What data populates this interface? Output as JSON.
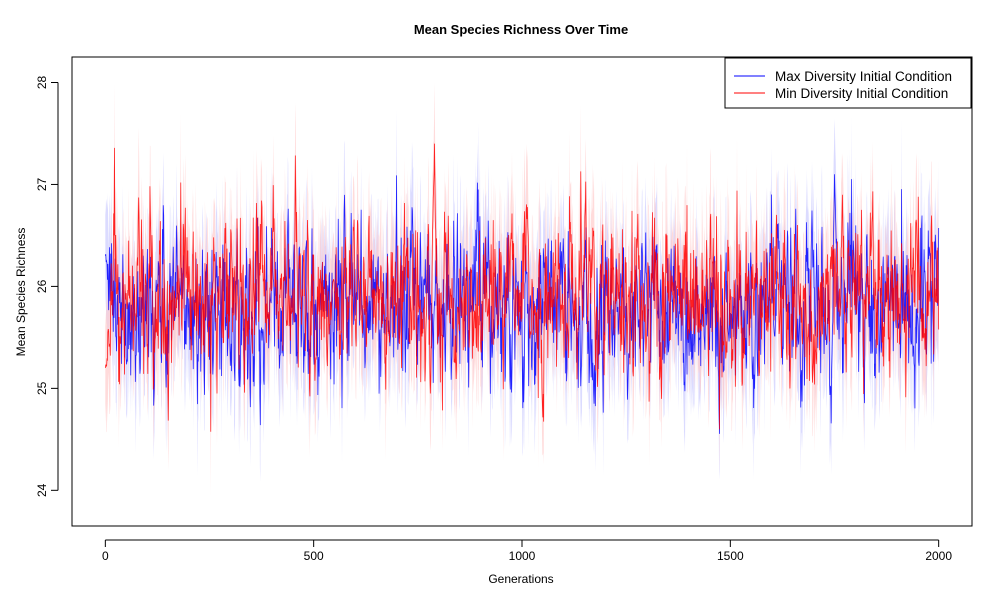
{
  "chart_data": {
    "type": "line",
    "title": "Mean Species Richness Over Time",
    "xlabel": "Generations",
    "ylabel": "Mean Species Richness",
    "xlim": [
      -80,
      2080
    ],
    "ylim": [
      23.65,
      28.25
    ],
    "x_ticks": [
      0,
      500,
      1000,
      1500,
      2000
    ],
    "y_ticks": [
      24,
      25,
      26,
      27,
      28
    ],
    "legend_position": "top-right",
    "grid": false,
    "generations": [
      0,
      2000
    ],
    "series": [
      {
        "name": "Max Diversity Initial Condition",
        "color": "#0000ff",
        "band_color": "#ccccff",
        "mean_level": 25.8,
        "start": 26.3,
        "peak": {
          "x": 1750,
          "y": 27.1
        }
      },
      {
        "name": "Min Diversity Initial Condition",
        "color": "#ff0000",
        "band_color": "#ffcccc",
        "mean_level": 25.9,
        "start": 25.2,
        "peak": {
          "x": 790,
          "y": 27.4
        }
      }
    ]
  }
}
